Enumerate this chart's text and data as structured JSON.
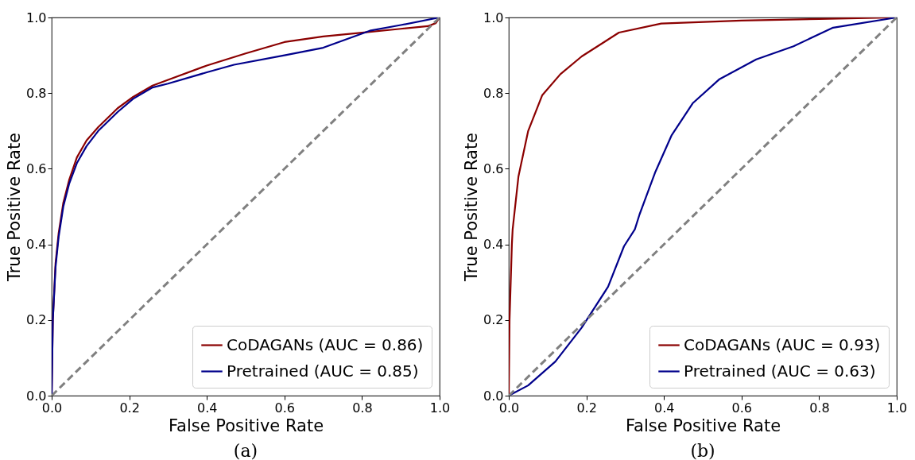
{
  "chart_data": [
    {
      "type": "line",
      "title": "(a)",
      "xlabel": "False Positive Rate",
      "ylabel": "True Positive Rate",
      "xlim": [
        0,
        1
      ],
      "ylim": [
        0,
        1
      ],
      "xticks": [
        {
          "value": 0,
          "label": "0.0"
        },
        {
          "value": 0.2,
          "label": "0.2"
        },
        {
          "value": 0.4,
          "label": "0.4"
        },
        {
          "value": 0.6,
          "label": "0.6"
        },
        {
          "value": 0.8,
          "label": "0.8"
        },
        {
          "value": 1,
          "label": "1.0"
        }
      ],
      "yticks": [
        {
          "value": 0,
          "label": "0.0"
        },
        {
          "value": 0.2,
          "label": "0.2"
        },
        {
          "value": 0.4,
          "label": "0.4"
        },
        {
          "value": 0.6,
          "label": "0.6"
        },
        {
          "value": 0.8,
          "label": "0.8"
        },
        {
          "value": 1,
          "label": "1.0"
        }
      ],
      "legend": "bottom right",
      "series": [
        {
          "name": "CoDAGANs (AUC = 0.86)",
          "color": "#8b0000",
          "x": [
            0,
            0.003,
            0.01,
            0.018,
            0.03,
            0.045,
            0.065,
            0.09,
            0.12,
            0.17,
            0.21,
            0.26,
            0.3,
            0.4,
            0.5,
            0.6,
            0.7,
            0.8,
            0.9,
            0.97,
            0.99,
            1
          ],
          "values": [
            0,
            0.2,
            0.35,
            0.43,
            0.51,
            0.57,
            0.63,
            0.675,
            0.71,
            0.76,
            0.79,
            0.82,
            0.835,
            0.873,
            0.905,
            0.935,
            0.95,
            0.96,
            0.97,
            0.977,
            0.985,
            1
          ]
        },
        {
          "name": "Pretrained (AUC = 0.85)",
          "color": "#00008b",
          "x": [
            0,
            0.003,
            0.01,
            0.018,
            0.03,
            0.045,
            0.065,
            0.09,
            0.12,
            0.17,
            0.21,
            0.26,
            0.3,
            0.4,
            0.47,
            0.6,
            0.7,
            0.82,
            0.9,
            1
          ],
          "values": [
            0,
            0.2,
            0.34,
            0.42,
            0.5,
            0.56,
            0.615,
            0.66,
            0.7,
            0.75,
            0.785,
            0.815,
            0.825,
            0.855,
            0.875,
            0.9,
            0.92,
            0.965,
            0.98,
            1
          ]
        },
        {
          "color": "#808080",
          "line_style": "dashed",
          "x": [
            0,
            1
          ],
          "values": [
            0,
            1
          ]
        }
      ]
    },
    {
      "type": "line",
      "title": "(b)",
      "xlabel": "False Positive Rate",
      "ylabel": "True Positive Rate",
      "xlim": [
        0,
        1
      ],
      "ylim": [
        0,
        1
      ],
      "xticks": [
        {
          "value": 0,
          "label": "0.0"
        },
        {
          "value": 0.2,
          "label": "0.2"
        },
        {
          "value": 0.4,
          "label": "0.4"
        },
        {
          "value": 0.6,
          "label": "0.6"
        },
        {
          "value": 0.8,
          "label": "0.8"
        },
        {
          "value": 1,
          "label": "1.0"
        }
      ],
      "yticks": [
        {
          "value": 0,
          "label": "0.0"
        },
        {
          "value": 0.2,
          "label": "0.2"
        },
        {
          "value": 0.4,
          "label": "0.4"
        },
        {
          "value": 0.6,
          "label": "0.6"
        },
        {
          "value": 0.8,
          "label": "0.8"
        },
        {
          "value": 1,
          "label": "1.0"
        }
      ],
      "legend": "bottom right",
      "series": [
        {
          "name": "CoDAGANs (AUC = 0.93)",
          "color": "#8b0000",
          "x": [
            0,
            0.002,
            0.008,
            0.01,
            0.025,
            0.05,
            0.086,
            0.133,
            0.188,
            0.284,
            0.393,
            0.6,
            0.8,
            1
          ],
          "values": [
            0,
            0.2,
            0.4,
            0.44,
            0.58,
            0.7,
            0.794,
            0.85,
            0.897,
            0.96,
            0.984,
            0.992,
            0.996,
            1
          ]
        },
        {
          "name": "Pretrained (AUC = 0.63)",
          "color": "#00008b",
          "x": [
            0,
            0.05,
            0.12,
            0.188,
            0.256,
            0.297,
            0.325,
            0.337,
            0.378,
            0.42,
            0.474,
            0.542,
            0.638,
            0.734,
            0.836,
            1
          ],
          "values": [
            0,
            0.027,
            0.09,
            0.18,
            0.288,
            0.395,
            0.44,
            0.479,
            0.592,
            0.689,
            0.773,
            0.836,
            0.889,
            0.924,
            0.973,
            1
          ]
        },
        {
          "color": "#808080",
          "line_style": "dashed",
          "x": [
            0,
            1
          ],
          "values": [
            0,
            1
          ]
        }
      ]
    }
  ]
}
